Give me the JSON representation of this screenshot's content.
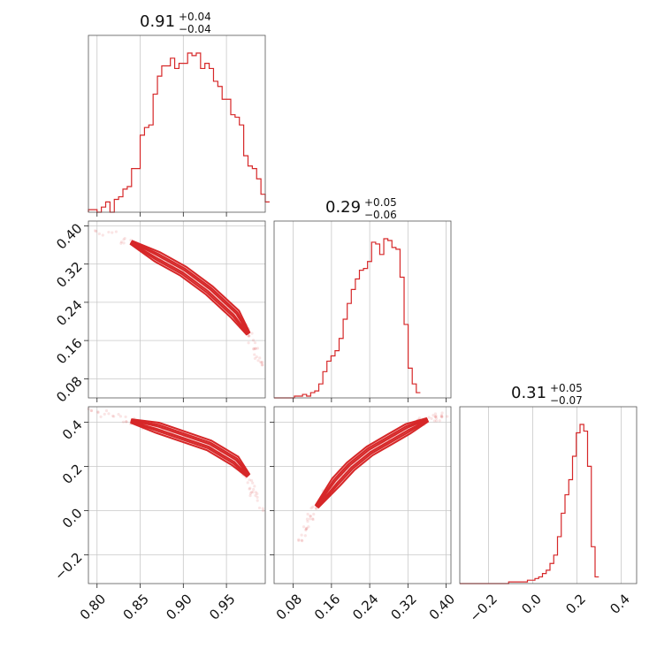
{
  "colors": {
    "series": "#d62728",
    "grid": "#c8c8c8",
    "frame": "#555555"
  },
  "chart_data": {
    "type": "corner",
    "parameters": [
      {
        "title": {
          "median": "0.91",
          "plus": "+0.04",
          "minus": "−0.04"
        },
        "range": [
          0.79,
          0.995
        ],
        "ticks": [
          0.8,
          0.85,
          0.9,
          0.95
        ],
        "tick_labels": [
          "0.80",
          "0.85",
          "0.90",
          "0.95"
        ],
        "hist": {
          "edges_start": 0.79,
          "bin_width": 0.005,
          "counts": [
            1,
            1,
            0,
            2,
            4,
            0,
            5,
            6,
            9,
            10,
            17,
            17,
            30,
            33,
            34,
            46,
            53,
            57,
            57,
            60,
            56,
            58,
            58,
            62,
            61,
            62,
            56,
            58,
            56,
            51,
            49,
            44,
            44,
            38,
            37,
            34,
            22,
            18,
            17,
            13,
            7,
            4
          ]
        }
      },
      {
        "title": {
          "median": "0.29",
          "plus": "+0.05",
          "minus": "−0.06"
        },
        "range": [
          0.04,
          0.41
        ],
        "ticks": [
          0.08,
          0.16,
          0.24,
          0.32,
          0.4
        ],
        "tick_labels": [
          "0.08",
          "0.16",
          "0.24",
          "0.32",
          "0.40"
        ],
        "hist": {
          "edges_start": 0.04,
          "bin_width": 0.0085,
          "counts": [
            0,
            0,
            0,
            0,
            0,
            1,
            1,
            2,
            1,
            3,
            4,
            8,
            15,
            21,
            24,
            27,
            34,
            45,
            54,
            62,
            68,
            73,
            74,
            78,
            89,
            88,
            82,
            91,
            90,
            86,
            85,
            69,
            42,
            17,
            8,
            3
          ]
        }
      },
      {
        "title": {
          "median": "0.31",
          "plus": "+0.05",
          "minus": "−0.07"
        },
        "range": [
          -0.33,
          0.47
        ],
        "ticks": [
          -0.2,
          0.0,
          0.2,
          0.4
        ],
        "tick_labels": [
          "−0.2",
          "0.0",
          "0.2",
          "0.4"
        ],
        "y_tick_labels": [
          "−0.2",
          "0.0",
          "0.2",
          "0.4"
        ],
        "hist": {
          "edges_start": -0.33,
          "bin_width": 0.017,
          "counts": [
            0,
            0,
            0,
            0,
            0,
            0,
            0,
            0,
            0,
            0,
            0,
            0,
            0,
            1,
            1,
            1,
            1,
            1,
            2,
            2,
            3,
            4,
            6,
            8,
            12,
            17,
            28,
            42,
            53,
            62,
            76,
            90,
            95,
            91,
            70,
            22,
            4
          ]
        }
      }
    ],
    "pairs": [
      {
        "x_param": 0,
        "y_param": 1,
        "trend": [
          [
            0.785,
            0.405
          ],
          [
            0.84,
            0.365
          ],
          [
            0.87,
            0.335
          ],
          [
            0.9,
            0.305
          ],
          [
            0.93,
            0.265
          ],
          [
            0.96,
            0.215
          ],
          [
            0.975,
            0.175
          ],
          [
            0.99,
            0.11
          ]
        ]
      },
      {
        "x_param": 0,
        "y_param": 2,
        "trend": [
          [
            0.785,
            0.455
          ],
          [
            0.84,
            0.405
          ],
          [
            0.87,
            0.375
          ],
          [
            0.9,
            0.335
          ],
          [
            0.93,
            0.295
          ],
          [
            0.96,
            0.225
          ],
          [
            0.975,
            0.16
          ],
          [
            0.99,
            0.0
          ]
        ]
      },
      {
        "x_param": 1,
        "y_param": 2,
        "trend": [
          [
            0.09,
            -0.15
          ],
          [
            0.13,
            0.02
          ],
          [
            0.17,
            0.13
          ],
          [
            0.2,
            0.2
          ],
          [
            0.24,
            0.27
          ],
          [
            0.28,
            0.32
          ],
          [
            0.32,
            0.37
          ],
          [
            0.36,
            0.41
          ],
          [
            0.405,
            0.435
          ]
        ]
      }
    ]
  }
}
